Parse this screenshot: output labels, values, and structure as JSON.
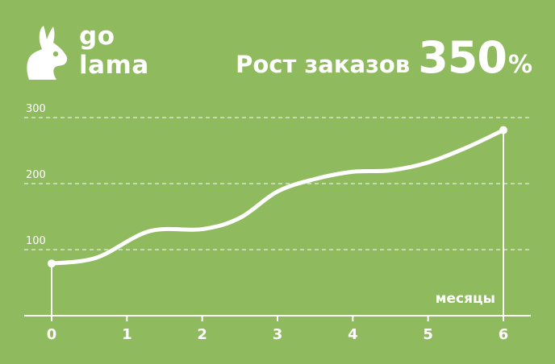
{
  "logo": {
    "line1": "go",
    "line2": "lama"
  },
  "headline": {
    "text": "Рост заказов",
    "value": "350",
    "unit": "%"
  },
  "colors": {
    "background": "#8fba5e",
    "line": "#ffffff",
    "grid": "#ffffff"
  },
  "chart_data": {
    "type": "line",
    "title": "",
    "xlabel": "месяцы",
    "ylabel": "",
    "x_ticks": [
      "0",
      "1",
      "2",
      "3",
      "4",
      "5",
      "6"
    ],
    "y_ticks": [
      "100",
      "200",
      "300"
    ],
    "xlim": [
      0,
      6
    ],
    "ylim": [
      0,
      300
    ],
    "grid": "horizontal-dashed",
    "series": [
      {
        "x": [
          0,
          0.6,
          1.3,
          2.0,
          2.5,
          3.0,
          3.5,
          4.0,
          4.5,
          5.0,
          5.5,
          6.0
        ],
        "values": [
          79,
          88,
          128,
          131,
          148,
          188,
          207,
          218,
          220,
          232,
          254,
          281
        ]
      }
    ]
  }
}
